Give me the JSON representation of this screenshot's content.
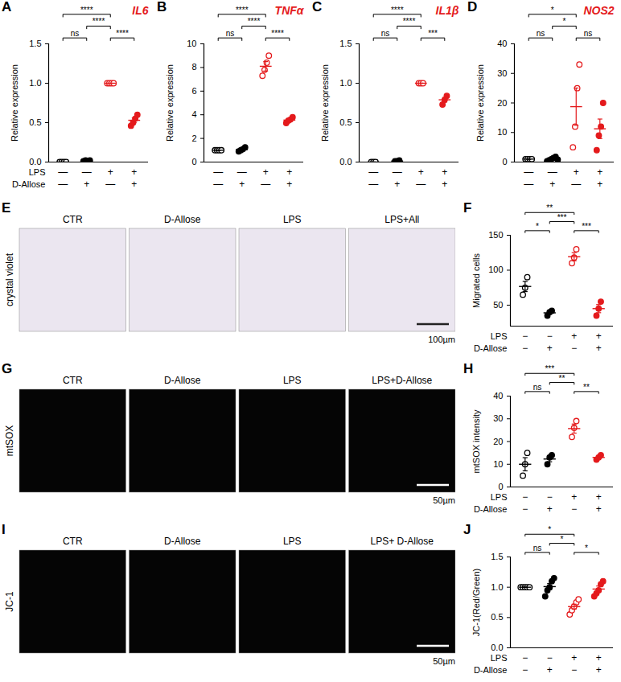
{
  "chart_data": [
    {
      "type": "scatter",
      "letter": "A",
      "title": "IL6",
      "y_label": "Relative expression",
      "ylim": [
        0,
        1.5
      ],
      "yticks": [
        {
          "value": 0,
          "label": "0.0"
        },
        0.5,
        {
          "value": 1,
          "label": "1.0"
        },
        1.5
      ],
      "categories": [
        null,
        null,
        null,
        null
      ],
      "tick_labels": "y",
      "condition_rows": [
        {
          "label": "LPS",
          "signs": [
            "—",
            "—",
            "+",
            "+"
          ]
        },
        {
          "label": "D-Allose",
          "signs": [
            "—",
            "+",
            "—",
            "+"
          ]
        }
      ],
      "groups": [
        {
          "color": "#000000",
          "marker": "circle-open",
          "values": [
            0,
            0,
            0,
            0
          ],
          "mean": 0,
          "error": 0
        },
        {
          "color": "#000000",
          "marker": "circle",
          "values": [
            0.01,
            0.02,
            0.01,
            0.02
          ],
          "mean": 0.015,
          "error": 0.003
        },
        {
          "color": "#e41a1c",
          "marker": "circle-open",
          "values": [
            1,
            1,
            1,
            1
          ],
          "mean": 1,
          "error": 0
        },
        {
          "color": "#e41a1c",
          "marker": "circle",
          "values": [
            0.46,
            0.5,
            0.55,
            0.6
          ],
          "mean": 0.53,
          "error": 0.03
        }
      ],
      "comparisons": [
        {
          "from": 0,
          "to": 1,
          "label": "ns"
        },
        {
          "from": 2,
          "to": 3,
          "label": "****"
        },
        {
          "from": 1,
          "to": 2,
          "label": "****"
        },
        {
          "from": 0,
          "to": 2,
          "label": "****"
        }
      ]
    },
    {
      "type": "scatter",
      "letter": "B",
      "title": "TNFα",
      "y_label": "Relative expression",
      "ylim": [
        0,
        10
      ],
      "yticks": [
        0,
        2,
        4,
        6,
        8,
        10
      ],
      "categories": [
        null,
        null,
        null,
        null
      ],
      "tick_labels": "y",
      "condition_rows": [
        {
          "signs": [
            "—",
            "—",
            "+",
            "+"
          ]
        },
        {
          "signs": [
            "—",
            "+",
            "—",
            "+"
          ]
        }
      ],
      "groups": [
        {
          "color": "#000000",
          "marker": "circle-open",
          "values": [
            1,
            1,
            1,
            1
          ],
          "mean": 1,
          "error": 0
        },
        {
          "color": "#000000",
          "marker": "circle",
          "values": [
            0.9,
            1.0,
            1.1,
            1.25
          ],
          "mean": 1.06,
          "error": 0.07
        },
        {
          "color": "#e41a1c",
          "marker": "circle-open",
          "values": [
            7.3,
            7.8,
            8.4,
            9.0
          ],
          "mean": 8.1,
          "error": 0.4
        },
        {
          "color": "#e41a1c",
          "marker": "circle",
          "values": [
            3.3,
            3.5,
            3.6,
            3.8
          ],
          "mean": 3.55,
          "error": 0.1
        }
      ],
      "comparisons": [
        {
          "from": 0,
          "to": 1,
          "label": "ns"
        },
        {
          "from": 2,
          "to": 3,
          "label": "****"
        },
        {
          "from": 1,
          "to": 2,
          "label": "****"
        },
        {
          "from": 0,
          "to": 2,
          "label": "****"
        }
      ]
    },
    {
      "type": "scatter",
      "letter": "C",
      "title": "IL1β",
      "y_label": "Relative expression",
      "ylim": [
        0,
        1.5
      ],
      "yticks": [
        {
          "value": 0,
          "label": "0.0"
        },
        0.5,
        {
          "value": 1,
          "label": "1.0"
        },
        1.5
      ],
      "categories": [
        null,
        null,
        null,
        null
      ],
      "tick_labels": "y",
      "condition_rows": [
        {
          "signs": [
            "—",
            "—",
            "+",
            "+"
          ]
        },
        {
          "signs": [
            "—",
            "+",
            "—",
            "+"
          ]
        }
      ],
      "groups": [
        {
          "color": "#000000",
          "marker": "circle-open",
          "values": [
            0,
            0,
            0
          ],
          "mean": 0,
          "error": 0
        },
        {
          "color": "#000000",
          "marker": "circle",
          "values": [
            0.01,
            0.01,
            0.02
          ],
          "mean": 0.013,
          "error": 0.003
        },
        {
          "color": "#e41a1c",
          "marker": "circle-open",
          "values": [
            1,
            1,
            1
          ],
          "mean": 1,
          "error": 0
        },
        {
          "color": "#e41a1c",
          "marker": "circle",
          "values": [
            0.73,
            0.79,
            0.84
          ],
          "mean": 0.79,
          "error": 0.03
        }
      ],
      "comparisons": [
        {
          "from": 0,
          "to": 1,
          "label": "ns"
        },
        {
          "from": 2,
          "to": 3,
          "label": "***"
        },
        {
          "from": 1,
          "to": 2,
          "label": "****"
        },
        {
          "from": 0,
          "to": 2,
          "label": "****"
        }
      ]
    },
    {
      "type": "scatter",
      "letter": "D",
      "title": "NOS2",
      "y_label": "Relative expression",
      "ylim": [
        0,
        40
      ],
      "yticks": [
        0,
        10,
        20,
        30,
        40
      ],
      "categories": [
        null,
        null,
        null,
        null
      ],
      "tick_labels": "y",
      "condition_rows": [
        {
          "signs": [
            "—",
            "—",
            "+",
            "+"
          ]
        },
        {
          "signs": [
            "—",
            "+",
            "—",
            "+"
          ]
        }
      ],
      "groups": [
        {
          "color": "#000000",
          "marker": "circle-open",
          "values": [
            1,
            1,
            1,
            1
          ],
          "mean": 1,
          "error": 0
        },
        {
          "color": "#000000",
          "marker": "circle",
          "values": [
            0.3,
            0.6,
            1.0,
            1.4,
            1.8,
            0.8
          ],
          "mean": 0.98,
          "error": 0.22
        },
        {
          "color": "#e41a1c",
          "marker": "circle-open",
          "values": [
            5,
            12,
            25,
            33
          ],
          "mean": 18.75,
          "error": 6.3
        },
        {
          "color": "#e41a1c",
          "marker": "circle",
          "values": [
            4,
            9,
            12,
            20
          ],
          "mean": 11.25,
          "error": 3.3
        }
      ],
      "comparisons": [
        {
          "from": 0,
          "to": 1,
          "label": "ns"
        },
        {
          "from": 2,
          "to": 3,
          "label": "ns"
        },
        {
          "from": 1,
          "to": 2,
          "label": "*"
        },
        {
          "from": 0,
          "to": 2,
          "label": "*"
        }
      ]
    },
    {
      "type": "scatter",
      "letter": "F",
      "y_label": "Migrated cells",
      "ylim": [
        20,
        150
      ],
      "yticks": [
        50,
        100,
        150
      ],
      "categories": [
        null,
        null,
        null,
        null
      ],
      "tick_labels": "y",
      "condition_rows": [
        {
          "label": "LPS",
          "signs": [
            "−",
            "−",
            "+",
            "+"
          ]
        },
        {
          "label": "D-Allose",
          "signs": [
            "−",
            "+",
            "−",
            "+"
          ]
        }
      ],
      "groups": [
        {
          "color": "#000000",
          "marker": "circle-open",
          "values": [
            65,
            75,
            90
          ],
          "mean": 76.7,
          "error": 7.3
        },
        {
          "color": "#000000",
          "marker": "circle",
          "values": [
            35,
            40,
            42
          ],
          "mean": 39,
          "error": 2.1
        },
        {
          "color": "#e41a1c",
          "marker": "circle-open",
          "values": [
            110,
            118,
            130
          ],
          "mean": 119.3,
          "error": 5.8
        },
        {
          "color": "#e41a1c",
          "marker": "circle",
          "values": [
            35,
            45,
            55
          ],
          "mean": 45,
          "error": 5.8
        }
      ],
      "comparisons": [
        {
          "from": 0,
          "to": 1,
          "label": "*"
        },
        {
          "from": 1,
          "to": 2,
          "label": "***"
        },
        {
          "from": 2,
          "to": 3,
          "label": "***"
        },
        {
          "from": 0,
          "to": 2,
          "label": "**"
        }
      ]
    },
    {
      "type": "scatter",
      "letter": "H",
      "y_label": "mtSOX intensity",
      "ylim": [
        0,
        40
      ],
      "yticks": [
        0,
        10,
        20,
        30,
        40
      ],
      "categories": [
        null,
        null,
        null,
        null
      ],
      "tick_labels": "y",
      "condition_rows": [
        {
          "label": "LPS",
          "signs": [
            "−",
            "−",
            "+",
            "+"
          ]
        },
        {
          "label": "D-Allose",
          "signs": [
            "−",
            "+",
            "−",
            "+"
          ]
        }
      ],
      "groups": [
        {
          "color": "#000000",
          "marker": "circle-open",
          "values": [
            5,
            10,
            15
          ],
          "mean": 10,
          "error": 2.9
        },
        {
          "color": "#000000",
          "marker": "circle",
          "values": [
            10,
            13,
            14
          ],
          "mean": 12.3,
          "error": 1.2
        },
        {
          "color": "#e41a1c",
          "marker": "circle-open",
          "values": [
            22,
            26,
            29
          ],
          "mean": 25.7,
          "error": 2.0
        },
        {
          "color": "#e41a1c",
          "marker": "circle",
          "values": [
            12,
            13,
            14
          ],
          "mean": 13,
          "error": 0.6
        }
      ],
      "comparisons": [
        {
          "from": 0,
          "to": 1,
          "label": "ns"
        },
        {
          "from": 1,
          "to": 2,
          "label": "**"
        },
        {
          "from": 2,
          "to": 3,
          "label": "**"
        },
        {
          "from": 0,
          "to": 2,
          "label": "***"
        }
      ]
    },
    {
      "type": "scatter",
      "letter": "J",
      "y_label": "JC-1(Red/Green)",
      "ylim": [
        0,
        1.5
      ],
      "yticks": [
        {
          "value": 0,
          "label": "0.0"
        },
        0.5,
        {
          "value": 1,
          "label": "1.0"
        },
        1.5
      ],
      "categories": [
        null,
        null,
        null,
        null
      ],
      "tick_labels": "y",
      "condition_rows": [
        {
          "label": "LPS",
          "signs": [
            "−",
            "−",
            "+",
            "+"
          ]
        },
        {
          "label": "D-Allose",
          "signs": [
            "−",
            "+",
            "−",
            "+"
          ]
        }
      ],
      "groups": [
        {
          "color": "#000000",
          "marker": "circle-open",
          "values": [
            1,
            1,
            1,
            1,
            1
          ],
          "mean": 1,
          "error": 0
        },
        {
          "color": "#000000",
          "marker": "circle",
          "values": [
            0.85,
            0.95,
            1.0,
            1.1,
            1.15
          ],
          "mean": 1.01,
          "error": 0.05
        },
        {
          "color": "#e41a1c",
          "marker": "circle-open",
          "values": [
            0.55,
            0.62,
            0.68,
            0.75,
            0.8
          ],
          "mean": 0.68,
          "error": 0.04
        },
        {
          "color": "#e41a1c",
          "marker": "circle",
          "values": [
            0.85,
            0.9,
            0.95,
            1.05,
            1.1
          ],
          "mean": 0.97,
          "error": 0.05
        }
      ],
      "comparisons": [
        {
          "from": 0,
          "to": 1,
          "label": "ns"
        },
        {
          "from": 1,
          "to": 2,
          "label": "*"
        },
        {
          "from": 2,
          "to": 3,
          "label": "*"
        },
        {
          "from": 0,
          "to": 2,
          "label": "*"
        }
      ]
    }
  ],
  "image_panels": [
    {
      "letter": "E",
      "stain": "crystal violet",
      "conditions": [
        "CTR",
        "D-Allose",
        "LPS",
        "LPS+All"
      ],
      "scale_bar": "100µm"
    },
    {
      "letter": "G",
      "stain": "mtSOX",
      "conditions": [
        "CTR",
        "D-Allose",
        "LPS",
        "LPS+D-Allose"
      ],
      "scale_bar": "50µm"
    },
    {
      "letter": "I",
      "stain": "JC-1",
      "conditions": [
        "CTR",
        "D-Allose",
        "LPS",
        "LPS+ D-Allose"
      ],
      "scale_bar": "50µm"
    }
  ]
}
